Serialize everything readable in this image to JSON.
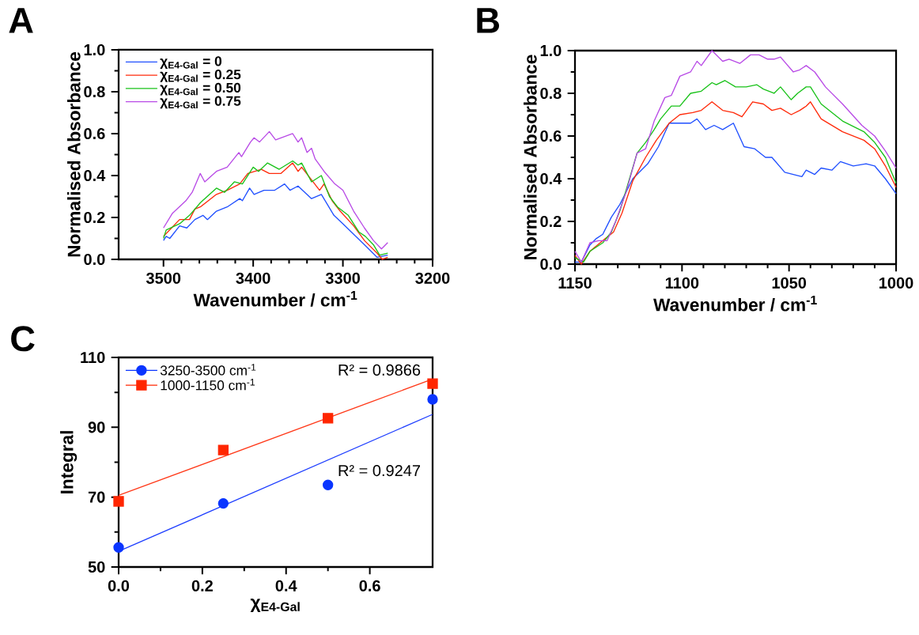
{
  "chart_data": [
    {
      "type": "line",
      "title": "A",
      "xlabel": "Wavenumber / cm$^{-1}$",
      "ylabel": "Normalised Absorbance",
      "xlim": [
        3550,
        3200
      ],
      "xticks": [
        3500,
        3400,
        3300,
        3200
      ],
      "ylim": [
        0,
        1
      ],
      "yticks": [
        {
          "value": 0,
          "label": "0.0"
        },
        {
          "value": 0.2,
          "label": "0.2"
        },
        {
          "value": 0.4,
          "label": "0.4"
        },
        {
          "value": 0.6,
          "label": "0.6"
        },
        {
          "value": 0.8,
          "label": "0.8"
        },
        {
          "value": 1,
          "label": "1.0"
        }
      ],
      "legend": "top left",
      "series": [
        {
          "name": "χ$_{E4-Gal}$ = 0",
          "color": "#1f4fff",
          "x": [
            3500,
            3497,
            3493,
            3482,
            3474,
            3465,
            3456,
            3451,
            3441,
            3429,
            3415,
            3412,
            3404,
            3399,
            3388,
            3376,
            3365,
            3359,
            3350,
            3335,
            3324,
            3310,
            3300,
            3288,
            3276,
            3262,
            3250
          ],
          "values": [
            0.09,
            0.11,
            0.1,
            0.16,
            0.15,
            0.19,
            0.21,
            0.19,
            0.23,
            0.25,
            0.29,
            0.28,
            0.34,
            0.31,
            0.33,
            0.33,
            0.36,
            0.33,
            0.35,
            0.29,
            0.31,
            0.21,
            0.17,
            0.12,
            0.07,
            0.01,
            0.02
          ]
        },
        {
          "name": "χ$_{E4-Gal}$ = 0.25",
          "color": "#ff2a0a",
          "x": [
            3500,
            3491,
            3482,
            3471,
            3465,
            3459,
            3441,
            3429,
            3415,
            3406,
            3391,
            3382,
            3369,
            3356,
            3350,
            3346,
            3335,
            3326,
            3321,
            3312,
            3303,
            3288,
            3276,
            3262,
            3256,
            3250
          ],
          "values": [
            0.11,
            0.15,
            0.19,
            0.19,
            0.24,
            0.25,
            0.31,
            0.33,
            0.36,
            0.41,
            0.43,
            0.41,
            0.41,
            0.46,
            0.42,
            0.44,
            0.38,
            0.33,
            0.36,
            0.28,
            0.23,
            0.16,
            0.09,
            0.03,
            0.0,
            0.01
          ]
        },
        {
          "name": "χ$_{E4-Gal}$ = 0.50",
          "color": "#19c219",
          "x": [
            3500,
            3497,
            3482,
            3471,
            3459,
            3441,
            3432,
            3421,
            3412,
            3400,
            3394,
            3384,
            3371,
            3356,
            3350,
            3346,
            3335,
            3324,
            3315,
            3306,
            3294,
            3282,
            3275,
            3266,
            3259,
            3250
          ],
          "values": [
            0.1,
            0.14,
            0.17,
            0.21,
            0.27,
            0.34,
            0.32,
            0.37,
            0.36,
            0.44,
            0.42,
            0.46,
            0.43,
            0.47,
            0.45,
            0.46,
            0.37,
            0.4,
            0.3,
            0.25,
            0.21,
            0.13,
            0.11,
            0.07,
            0.02,
            0.03
          ]
        },
        {
          "name": "χ$_{E4-Gal}$ = 0.75",
          "color": "#b84ae6",
          "x": [
            3500,
            3490,
            3475,
            3468,
            3459,
            3454,
            3441,
            3429,
            3416,
            3413,
            3403,
            3399,
            3393,
            3382,
            3375,
            3356,
            3350,
            3346,
            3340,
            3335,
            3331,
            3321,
            3309,
            3300,
            3288,
            3276,
            3266,
            3257,
            3250
          ],
          "values": [
            0.15,
            0.22,
            0.28,
            0.32,
            0.41,
            0.37,
            0.42,
            0.44,
            0.51,
            0.49,
            0.56,
            0.58,
            0.56,
            0.61,
            0.57,
            0.6,
            0.56,
            0.58,
            0.51,
            0.53,
            0.48,
            0.42,
            0.36,
            0.33,
            0.23,
            0.15,
            0.09,
            0.05,
            0.08
          ]
        }
      ]
    },
    {
      "type": "line",
      "title": "B",
      "xlabel": "Wavenumber / cm$^{-1}$",
      "ylabel": "Normalised Absorbance",
      "xlim": [
        1150,
        1000
      ],
      "xticks": [
        1150,
        1100,
        1050,
        1000
      ],
      "ylim": [
        0,
        1
      ],
      "yticks": [
        {
          "value": 0,
          "label": "0.0"
        },
        {
          "value": 0.2,
          "label": "0.2"
        },
        {
          "value": 0.4,
          "label": "0.4"
        },
        {
          "value": 0.6,
          "label": "0.6"
        },
        {
          "value": 0.8,
          "label": "0.8"
        },
        {
          "value": 1,
          "label": "1.0"
        }
      ],
      "series": [
        {
          "color": "#1f4fff",
          "x": [
            1150,
            1147,
            1143,
            1140,
            1137,
            1133,
            1129,
            1123,
            1116,
            1111,
            1106,
            1101,
            1096,
            1093,
            1089,
            1085,
            1081,
            1076,
            1071,
            1066,
            1061,
            1058,
            1052,
            1044,
            1042,
            1038,
            1035,
            1030,
            1026,
            1020,
            1014,
            1010,
            1005,
            1000
          ],
          "values": [
            0.01,
            0.01,
            0.09,
            0.12,
            0.14,
            0.22,
            0.28,
            0.4,
            0.47,
            0.55,
            0.66,
            0.66,
            0.66,
            0.68,
            0.63,
            0.65,
            0.63,
            0.66,
            0.55,
            0.54,
            0.5,
            0.5,
            0.43,
            0.41,
            0.44,
            0.42,
            0.45,
            0.44,
            0.48,
            0.46,
            0.47,
            0.46,
            0.4,
            0.33
          ]
        },
        {
          "color": "#ff2a0a",
          "x": [
            1150,
            1147,
            1143,
            1137,
            1132,
            1128,
            1123,
            1117,
            1112,
            1106,
            1101,
            1095,
            1091,
            1086,
            1081,
            1076,
            1072,
            1067,
            1062,
            1058,
            1054,
            1049,
            1045,
            1042,
            1040,
            1035,
            1025,
            1015,
            1010,
            1005,
            1000
          ],
          "values": [
            0.04,
            0.0,
            0.06,
            0.11,
            0.15,
            0.24,
            0.39,
            0.5,
            0.58,
            0.66,
            0.7,
            0.71,
            0.72,
            0.76,
            0.72,
            0.71,
            0.69,
            0.76,
            0.75,
            0.72,
            0.73,
            0.7,
            0.72,
            0.74,
            0.76,
            0.68,
            0.62,
            0.58,
            0.54,
            0.46,
            0.36
          ]
        },
        {
          "color": "#19c219",
          "x": [
            1150,
            1146,
            1143,
            1137,
            1133,
            1129,
            1126,
            1121,
            1117,
            1113,
            1110,
            1105,
            1101,
            1096,
            1091,
            1086,
            1084,
            1080,
            1075,
            1070,
            1065,
            1062,
            1057,
            1054,
            1049,
            1046,
            1042,
            1040,
            1035,
            1025,
            1015,
            1010,
            1005,
            1000
          ],
          "values": [
            0.03,
            0.01,
            0.06,
            0.1,
            0.15,
            0.25,
            0.35,
            0.52,
            0.57,
            0.63,
            0.68,
            0.74,
            0.74,
            0.8,
            0.81,
            0.85,
            0.84,
            0.86,
            0.83,
            0.83,
            0.84,
            0.82,
            0.8,
            0.83,
            0.77,
            0.8,
            0.83,
            0.83,
            0.75,
            0.67,
            0.62,
            0.57,
            0.5,
            0.38
          ]
        },
        {
          "color": "#b84ae6",
          "x": [
            1150,
            1147,
            1143,
            1139,
            1135,
            1131,
            1126,
            1121,
            1117,
            1113,
            1108,
            1105,
            1101,
            1096,
            1093,
            1091,
            1086,
            1081,
            1078,
            1073,
            1068,
            1064,
            1060,
            1057,
            1054,
            1048,
            1045,
            1042,
            1038,
            1033,
            1025,
            1016,
            1010,
            1005,
            1000
          ],
          "values": [
            0.06,
            0.01,
            0.1,
            0.11,
            0.11,
            0.2,
            0.34,
            0.52,
            0.54,
            0.67,
            0.78,
            0.79,
            0.88,
            0.9,
            0.95,
            0.93,
            1.0,
            0.95,
            0.96,
            0.94,
            0.98,
            0.98,
            0.96,
            0.96,
            0.97,
            0.9,
            0.91,
            0.93,
            0.9,
            0.83,
            0.75,
            0.65,
            0.6,
            0.53,
            0.45
          ]
        }
      ]
    },
    {
      "type": "scatter",
      "title": "C",
      "xlabel": "χ$_{E4-Gal}$",
      "ylabel": "Integral",
      "xlim": [
        0,
        0.75
      ],
      "xticks": [
        {
          "value": 0,
          "label": "0.0"
        },
        {
          "value": 0.2,
          "label": "0.2"
        },
        {
          "value": 0.4,
          "label": "0.4"
        },
        {
          "value": 0.6,
          "label": "0.6"
        }
      ],
      "ylim": [
        50,
        110
      ],
      "yticks": [
        50,
        70,
        90,
        110
      ],
      "legend": "top left",
      "annotations": [
        "R² = 0.9866",
        "R² = 0.9247"
      ],
      "series": [
        {
          "name": "3250-3500 cm$^{-1}$",
          "color": "#0a35ff",
          "marker": "circle",
          "x": [
            0,
            0.25,
            0.5,
            0.75
          ],
          "values": [
            55.6,
            68.2,
            73.5,
            98.0
          ]
        },
        {
          "name": "1000-1150 cm$^{-1}$",
          "color": "#ff2600",
          "marker": "square",
          "x": [
            0,
            0.25,
            0.5,
            0.75
          ],
          "values": [
            68.8,
            83.5,
            92.6,
            102.5
          ]
        },
        {
          "type": "line",
          "color": "#1f3fff",
          "x": [
            0,
            0.75
          ],
          "values": [
            54.5,
            93.7
          ]
        },
        {
          "type": "line",
          "color": "#ff3a1a",
          "x": [
            0,
            0.75
          ],
          "values": [
            70.5,
            103.8
          ]
        }
      ]
    }
  ]
}
